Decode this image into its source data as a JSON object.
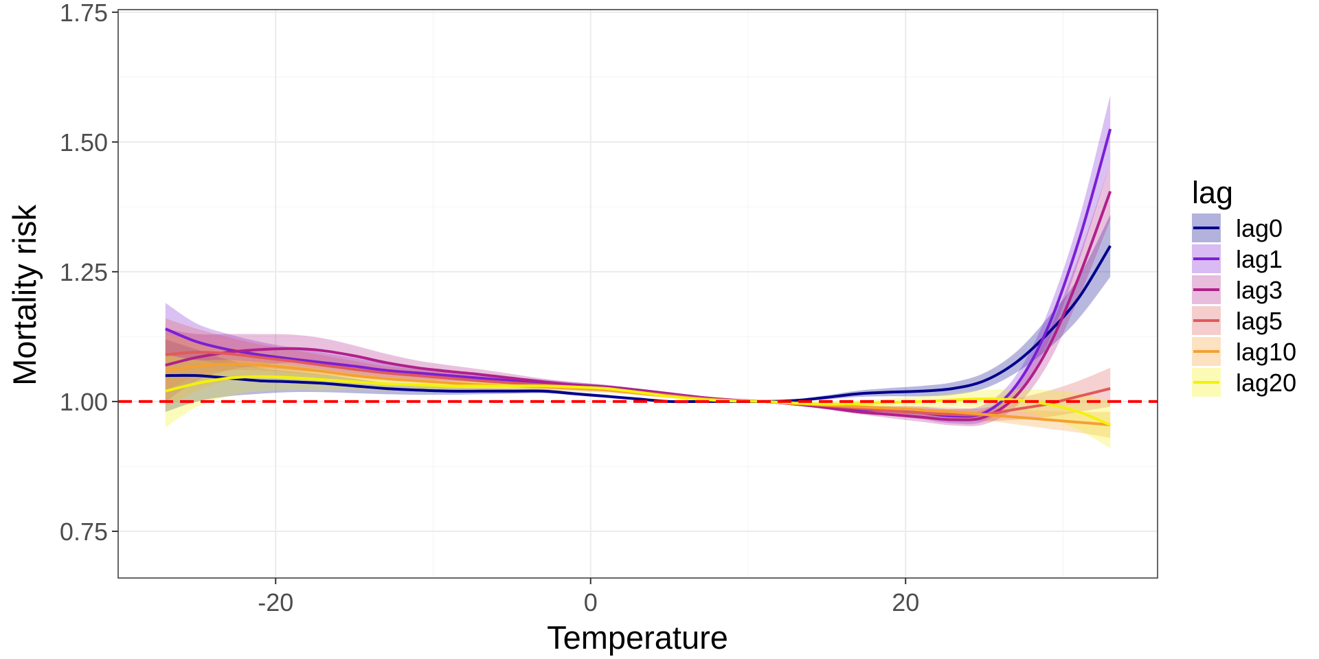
{
  "chart_data": {
    "type": "line",
    "xlabel": "Temperature",
    "ylabel": "Mortality risk",
    "xlim": [
      -30,
      36
    ],
    "ylim": [
      0.66,
      1.755
    ],
    "x_ticks": [
      -20,
      0,
      20
    ],
    "x_tick_labels": [
      "-20",
      "0",
      "20"
    ],
    "y_ticks": [
      0.75,
      1.0,
      1.25,
      1.5,
      1.75
    ],
    "y_tick_labels": [
      "0.75",
      "1.00",
      "1.25",
      "1.50",
      "1.75"
    ],
    "grid": true,
    "legend_title": "lag",
    "legend_position": "right",
    "reference_line": {
      "y": 1.0,
      "color": "#ff0000",
      "style": "dashed"
    },
    "x": [
      -27,
      -25,
      -23,
      -21,
      -19,
      -17,
      -15,
      -13,
      -11,
      -9,
      -7,
      -5,
      -3,
      -1,
      1,
      3,
      5,
      7,
      9,
      11,
      13,
      15,
      17,
      19,
      21,
      23,
      25,
      27,
      29,
      31,
      33
    ],
    "series": [
      {
        "name": "lag0",
        "color": "#00008b",
        "values": [
          1.05,
          1.05,
          1.045,
          1.04,
          1.038,
          1.035,
          1.03,
          1.025,
          1.022,
          1.02,
          1.02,
          1.02,
          1.02,
          1.015,
          1.01,
          1.005,
          1.0,
          1.0,
          1.0,
          1.0,
          1.002,
          1.008,
          1.015,
          1.018,
          1.02,
          1.025,
          1.04,
          1.075,
          1.13,
          1.2,
          1.3
        ],
        "lower": [
          0.98,
          1.0,
          1.01,
          1.015,
          1.018,
          1.018,
          1.016,
          1.014,
          1.013,
          1.013,
          1.014,
          1.015,
          1.016,
          1.012,
          1.007,
          1.003,
          0.998,
          0.998,
          0.999,
          1.0,
          1.0,
          1.004,
          1.009,
          1.01,
          1.01,
          1.013,
          1.025,
          1.055,
          1.1,
          1.16,
          1.24
        ],
        "upper": [
          1.12,
          1.1,
          1.08,
          1.065,
          1.058,
          1.052,
          1.044,
          1.036,
          1.031,
          1.027,
          1.026,
          1.025,
          1.024,
          1.018,
          1.013,
          1.007,
          1.002,
          1.002,
          1.001,
          1.0,
          1.004,
          1.012,
          1.021,
          1.026,
          1.03,
          1.037,
          1.055,
          1.095,
          1.16,
          1.24,
          1.36
        ]
      },
      {
        "name": "lag1",
        "color": "#7b1fd4",
        "values": [
          1.14,
          1.115,
          1.1,
          1.09,
          1.082,
          1.075,
          1.068,
          1.06,
          1.055,
          1.05,
          1.045,
          1.04,
          1.036,
          1.032,
          1.028,
          1.022,
          1.015,
          1.008,
          1.002,
          1.0,
          0.995,
          0.99,
          0.985,
          0.982,
          0.978,
          0.972,
          0.978,
          1.03,
          1.14,
          1.31,
          1.525
        ],
        "lower": [
          1.09,
          1.08,
          1.07,
          1.065,
          1.06,
          1.056,
          1.052,
          1.047,
          1.043,
          1.04,
          1.037,
          1.033,
          1.03,
          1.027,
          1.024,
          1.019,
          1.012,
          1.006,
          1.001,
          1.0,
          0.993,
          0.986,
          0.979,
          0.973,
          0.966,
          0.958,
          0.962,
          1.01,
          1.11,
          1.27,
          1.46
        ],
        "upper": [
          1.19,
          1.15,
          1.13,
          1.115,
          1.104,
          1.094,
          1.084,
          1.073,
          1.067,
          1.06,
          1.053,
          1.047,
          1.042,
          1.037,
          1.032,
          1.025,
          1.018,
          1.01,
          1.003,
          1.0,
          0.997,
          0.994,
          0.991,
          0.991,
          0.99,
          0.986,
          0.994,
          1.05,
          1.17,
          1.35,
          1.59
        ]
      },
      {
        "name": "lag3",
        "color": "#b0208a",
        "values": [
          1.07,
          1.085,
          1.095,
          1.1,
          1.102,
          1.098,
          1.088,
          1.075,
          1.065,
          1.058,
          1.052,
          1.045,
          1.038,
          1.032,
          1.028,
          1.022,
          1.015,
          1.008,
          1.003,
          1.0,
          0.995,
          0.988,
          0.98,
          0.975,
          0.97,
          0.965,
          0.97,
          1.01,
          1.1,
          1.24,
          1.405
        ],
        "lower": [
          1.0,
          1.04,
          1.06,
          1.07,
          1.075,
          1.074,
          1.068,
          1.058,
          1.051,
          1.046,
          1.042,
          1.037,
          1.032,
          1.027,
          1.024,
          1.019,
          1.012,
          1.006,
          1.001,
          1.0,
          0.993,
          0.985,
          0.976,
          0.968,
          0.961,
          0.954,
          0.956,
          0.99,
          1.07,
          1.2,
          1.35
        ],
        "upper": [
          1.14,
          1.13,
          1.13,
          1.13,
          1.129,
          1.122,
          1.108,
          1.092,
          1.079,
          1.07,
          1.062,
          1.053,
          1.044,
          1.037,
          1.032,
          1.025,
          1.018,
          1.01,
          1.005,
          1.0,
          0.997,
          0.991,
          0.984,
          0.982,
          0.979,
          0.976,
          0.984,
          1.03,
          1.13,
          1.28,
          1.46
        ]
      },
      {
        "name": "lag5",
        "color": "#e05a5a",
        "values": [
          1.09,
          1.095,
          1.092,
          1.085,
          1.078,
          1.07,
          1.062,
          1.055,
          1.05,
          1.045,
          1.04,
          1.036,
          1.032,
          1.028,
          1.024,
          1.018,
          1.012,
          1.006,
          1.002,
          1.0,
          0.996,
          0.992,
          0.987,
          0.982,
          0.978,
          0.975,
          0.975,
          0.985,
          0.995,
          1.01,
          1.025
        ],
        "lower": [
          1.02,
          1.05,
          1.06,
          1.06,
          1.056,
          1.051,
          1.046,
          1.042,
          1.038,
          1.035,
          1.032,
          1.029,
          1.026,
          1.023,
          1.02,
          1.015,
          1.009,
          1.004,
          1.001,
          1.0,
          0.994,
          0.989,
          0.983,
          0.976,
          0.97,
          0.965,
          0.962,
          0.965,
          0.97,
          0.98,
          0.99
        ],
        "upper": [
          1.16,
          1.14,
          1.124,
          1.11,
          1.1,
          1.089,
          1.078,
          1.068,
          1.062,
          1.055,
          1.048,
          1.043,
          1.038,
          1.033,
          1.028,
          1.021,
          1.015,
          1.008,
          1.003,
          1.0,
          0.998,
          0.995,
          0.991,
          0.988,
          0.986,
          0.985,
          0.988,
          1.005,
          1.02,
          1.04,
          1.065
        ]
      },
      {
        "name": "lag10",
        "color": "#f5a032",
        "values": [
          1.06,
          1.068,
          1.072,
          1.07,
          1.065,
          1.058,
          1.05,
          1.044,
          1.04,
          1.036,
          1.032,
          1.03,
          1.028,
          1.025,
          1.022,
          1.016,
          1.01,
          1.005,
          1.002,
          1.0,
          0.996,
          0.993,
          0.99,
          0.987,
          0.984,
          0.98,
          0.975,
          0.97,
          0.965,
          0.96,
          0.955
        ],
        "lower": [
          0.99,
          1.02,
          1.04,
          1.045,
          1.044,
          1.04,
          1.035,
          1.031,
          1.028,
          1.025,
          1.023,
          1.022,
          1.021,
          1.019,
          1.017,
          1.012,
          1.007,
          1.003,
          1.001,
          1.0,
          0.994,
          0.99,
          0.986,
          0.982,
          0.977,
          0.971,
          0.964,
          0.956,
          0.948,
          0.94,
          0.93
        ],
        "upper": [
          1.13,
          1.116,
          1.104,
          1.095,
          1.086,
          1.076,
          1.065,
          1.057,
          1.052,
          1.047,
          1.041,
          1.038,
          1.035,
          1.031,
          1.027,
          1.02,
          1.013,
          1.007,
          1.003,
          1.0,
          0.998,
          0.996,
          0.994,
          0.992,
          0.991,
          0.989,
          0.986,
          0.984,
          0.982,
          0.98,
          0.98
        ]
      },
      {
        "name": "lag20",
        "color": "#f2f20a",
        "values": [
          1.02,
          1.035,
          1.045,
          1.048,
          1.046,
          1.042,
          1.038,
          1.034,
          1.032,
          1.03,
          1.03,
          1.03,
          1.03,
          1.028,
          1.025,
          1.018,
          1.01,
          1.004,
          1.001,
          1.0,
          0.997,
          0.995,
          0.996,
          0.998,
          1.0,
          1.003,
          1.005,
          1.003,
          0.995,
          0.98,
          0.955
        ],
        "lower": [
          0.95,
          0.99,
          1.01,
          1.02,
          1.022,
          1.022,
          1.022,
          1.021,
          1.021,
          1.021,
          1.022,
          1.023,
          1.023,
          1.022,
          1.02,
          1.014,
          1.007,
          1.002,
          1.0,
          1.0,
          0.995,
          0.991,
          0.99,
          0.99,
          0.99,
          0.99,
          0.988,
          0.982,
          0.968,
          0.945,
          0.91
        ],
        "upper": [
          1.09,
          1.08,
          1.08,
          1.076,
          1.07,
          1.062,
          1.054,
          1.047,
          1.043,
          1.039,
          1.038,
          1.037,
          1.037,
          1.034,
          1.03,
          1.022,
          1.013,
          1.006,
          1.002,
          1.0,
          0.999,
          0.999,
          1.002,
          1.006,
          1.01,
          1.016,
          1.022,
          1.024,
          1.022,
          1.015,
          1.0
        ]
      }
    ]
  }
}
